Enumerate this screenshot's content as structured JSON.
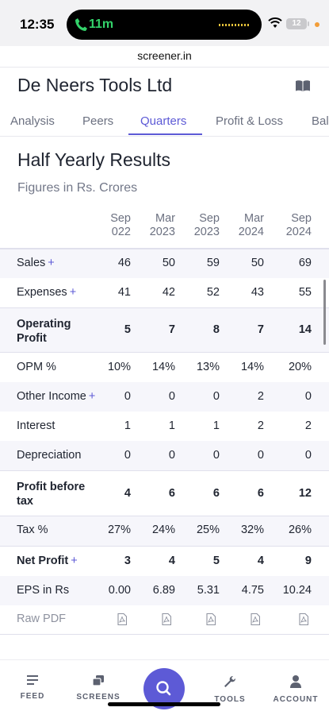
{
  "status_bar": {
    "time": "12:35",
    "call_duration": "11m",
    "battery": "12",
    "url": "screener.in"
  },
  "company": {
    "name": "De Neers Tools Ltd"
  },
  "tabs": [
    {
      "label": "Analysis",
      "active": false
    },
    {
      "label": "Peers",
      "active": false
    },
    {
      "label": "Quarters",
      "active": true
    },
    {
      "label": "Profit & Loss",
      "active": false
    },
    {
      "label": "Bala",
      "active": false
    }
  ],
  "section": {
    "title": "Half Yearly Results",
    "subtitle": "Figures in Rs. Crores"
  },
  "table": {
    "columns": [
      {
        "line1": "Sep",
        "line2": "022"
      },
      {
        "line1": "Mar",
        "line2": "2023"
      },
      {
        "line1": "Sep",
        "line2": "2023"
      },
      {
        "line1": "Mar",
        "line2": "2024"
      },
      {
        "line1": "Sep",
        "line2": "2024"
      }
    ],
    "rows": [
      {
        "label": "Sales",
        "plus": "+",
        "values": [
          "46",
          "50",
          "59",
          "50",
          "69"
        ]
      },
      {
        "label": "Expenses",
        "plus": "+",
        "values": [
          "41",
          "42",
          "52",
          "43",
          "55"
        ]
      },
      {
        "label": "Operating Profit",
        "plus": "",
        "values": [
          "5",
          "7",
          "8",
          "7",
          "14"
        ]
      },
      {
        "label": "OPM %",
        "plus": "",
        "values": [
          "10%",
          "14%",
          "13%",
          "14%",
          "20%"
        ]
      },
      {
        "label": "Other Income",
        "plus": "+",
        "values": [
          "0",
          "0",
          "0",
          "2",
          "0"
        ]
      },
      {
        "label": "Interest",
        "plus": "",
        "values": [
          "1",
          "1",
          "1",
          "2",
          "2"
        ]
      },
      {
        "label": "Depreciation",
        "plus": "",
        "values": [
          "0",
          "0",
          "0",
          "0",
          "0"
        ]
      },
      {
        "label": "Profit before tax",
        "plus": "",
        "values": [
          "4",
          "6",
          "6",
          "6",
          "12"
        ]
      },
      {
        "label": "Tax %",
        "plus": "",
        "values": [
          "27%",
          "24%",
          "25%",
          "32%",
          "26%"
        ]
      },
      {
        "label": "Net Profit",
        "plus": "+",
        "values": [
          "3",
          "4",
          "5",
          "4",
          "9"
        ]
      },
      {
        "label": "EPS in Rs",
        "plus": "",
        "values": [
          "0.00",
          "6.89",
          "5.31",
          "4.75",
          "10.24"
        ]
      }
    ],
    "raw_pdf_label": "Raw PDF"
  },
  "bottom_nav": [
    {
      "label": "FEED",
      "icon": "feed-icon"
    },
    {
      "label": "SCREENS",
      "icon": "screens-icon"
    },
    {
      "label": "",
      "icon": "search-icon"
    },
    {
      "label": "TOOLS",
      "icon": "wrench-icon"
    },
    {
      "label": "ACCOUNT",
      "icon": "account-icon"
    }
  ],
  "colors": {
    "accent": "#5d5ad6",
    "row_shade": "#f6f6fb"
  }
}
